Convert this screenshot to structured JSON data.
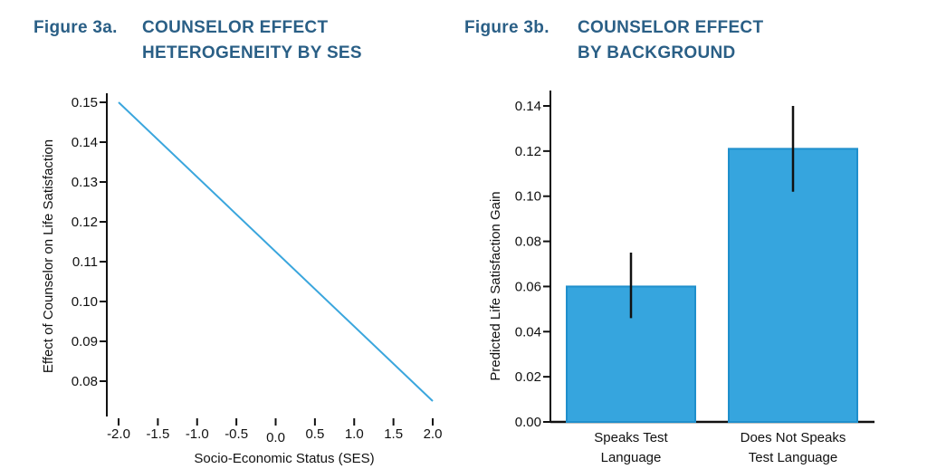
{
  "figures": {
    "a": {
      "label": "Figure 3a.",
      "title": "COUNSELOR EFFECT\nHETEROGENEITY BY SES"
    },
    "b": {
      "label": "Figure 3b.",
      "title": "COUNSELOR EFFECT\nBY BACKGROUND"
    }
  },
  "chart_data": [
    {
      "type": "line",
      "title": "COUNSELOR EFFECT HETEROGENEITY BY SES",
      "xlabel": "Socio-Economic Status (SES)",
      "ylabel": "Effect of Counselor on Life Satisfaction",
      "xlim": [
        -2.0,
        2.0
      ],
      "ylim": [
        0.075,
        0.155
      ],
      "xticks": [
        "-2.0",
        "-1.5",
        "-1.0",
        "-0.5",
        "0.0",
        "0.5",
        "1.0",
        "1.5",
        "2.0"
      ],
      "yticks": [
        "0.08",
        "0.09",
        "0.10",
        "0.11",
        "0.12",
        "0.13",
        "0.14",
        "0.15"
      ],
      "series": [
        {
          "x": [
            -2.0,
            2.0
          ],
          "y": [
            0.15,
            0.075
          ],
          "color": "#3aa6dd"
        }
      ],
      "grid": false
    },
    {
      "type": "bar",
      "title": "COUNSELOR EFFECT BY BACKGROUND",
      "xlabel": "",
      "ylabel": "Predicted Life Satisfaction Gain",
      "ylim": [
        0.0,
        0.145
      ],
      "yticks": [
        "0.00",
        "0.02",
        "0.04",
        "0.06",
        "0.08",
        "0.10",
        "0.12",
        "0.14"
      ],
      "categories": [
        "Speaks Test\nLanguage",
        "Does Not Speaks\nTest Language"
      ],
      "values": [
        0.06,
        0.121
      ],
      "error_low": [
        0.046,
        0.102
      ],
      "error_high": [
        0.075,
        0.14
      ],
      "bar_color": "#36a5de",
      "bar_edge_color": "#1f8fcc",
      "grid": false
    }
  ]
}
